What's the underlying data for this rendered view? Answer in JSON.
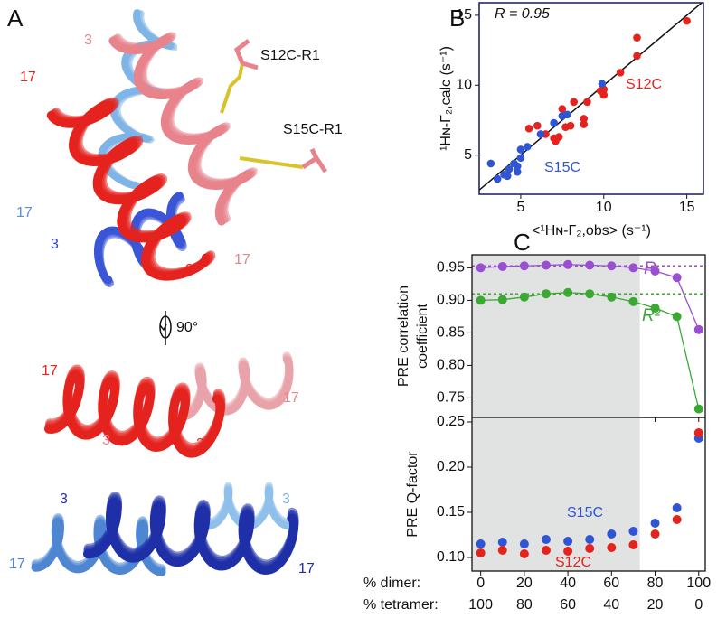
{
  "panel_a": {
    "label": "A",
    "labels": [
      "3",
      "S12C-R1",
      "17",
      "S15C-R1",
      "17",
      "3",
      "3",
      "17",
      "90°",
      "17",
      "17",
      "3",
      "3",
      "3",
      "3",
      "17",
      "17"
    ]
  },
  "chart_data": [
    {
      "type": "scatter",
      "panel": "B",
      "annotation": "R = 0.95",
      "xlabel": "<¹Hɴ-Γ₂,obs> (s⁻¹)",
      "ylabel": "¹Hɴ-Γ₂,calc (s⁻¹)",
      "xlim": [
        2.5,
        16
      ],
      "ylim": [
        2.2,
        15.9
      ],
      "xticks": [
        5,
        10,
        15
      ],
      "yticks": [
        5,
        10,
        15
      ],
      "series": [
        {
          "name": "S12C",
          "color": "#e5231e",
          "x": [
            15,
            12,
            12,
            11,
            10,
            10,
            9,
            8.8,
            8.8,
            8.2,
            8,
            7.5,
            7.3,
            7.1,
            7.7,
            6,
            5.5,
            9.8,
            6.5,
            7
          ],
          "values": [
            14.6,
            13.4,
            12.1,
            10.9,
            9.7,
            9.3,
            8.8,
            7.6,
            7.2,
            8.8,
            7.1,
            8.3,
            6.3,
            6,
            7,
            7.1,
            6.9,
            9.6,
            6.5,
            6.2
          ]
        },
        {
          "name": "S15C",
          "color": "#2f55d4",
          "x": [
            3.2,
            3.6,
            4,
            4.3,
            4.6,
            4.8,
            5,
            5,
            5.4,
            6.2,
            7,
            7.5,
            7.8,
            9.9,
            4.8,
            4.2
          ],
          "values": [
            4.4,
            3.3,
            3.6,
            4,
            4.4,
            4.2,
            4.8,
            5.4,
            5.6,
            6.5,
            7.3,
            7.8,
            7.9,
            10.1,
            3.8,
            3.5
          ]
        }
      ]
    },
    {
      "type": "line",
      "panel": "C",
      "ylabel": [
        "PRE correlation",
        "coefficient"
      ],
      "x": [
        0,
        10,
        20,
        30,
        40,
        50,
        60,
        70,
        80,
        90,
        100
      ],
      "xlim": [
        -4,
        103
      ],
      "shaded_xlim": [
        -4,
        73
      ],
      "ylim": [
        0.72,
        0.97
      ],
      "yticks": [
        0.75,
        {
          "value": 0.8,
          "label": "0.80"
        },
        0.85,
        {
          "value": 0.9,
          "label": "0.90"
        },
        0.95
      ],
      "series": [
        {
          "name": "R",
          "color": "#9a4fd0",
          "reference": 0.953,
          "values": [
            0.95,
            0.952,
            0.953,
            0.954,
            0.955,
            0.954,
            0.953,
            0.95,
            0.945,
            0.935,
            0.855
          ]
        },
        {
          "name": "R²",
          "color": "#3aa832",
          "reference": 0.91,
          "values": [
            0.9,
            0.901,
            0.905,
            0.91,
            0.912,
            0.91,
            0.905,
            0.898,
            0.888,
            0.875,
            0.733
          ]
        }
      ]
    },
    {
      "type": "scatter",
      "panel": "C",
      "ylabel": "PRE Q-factor",
      "x": [
        0,
        10,
        20,
        30,
        40,
        50,
        60,
        70,
        80,
        90,
        100
      ],
      "xlim": [
        -4,
        103
      ],
      "shaded_xlim": [
        -4,
        73
      ],
      "ylim": [
        0.085,
        0.255
      ],
      "yticks": [
        {
          "value": 0.1,
          "label": "0.10"
        },
        0.15,
        {
          "value": 0.2,
          "label": "0.20"
        },
        0.25
      ],
      "xlabel": "% dimer:",
      "xticks": [
        0,
        20,
        40,
        60,
        80,
        100
      ],
      "x2label": "% tetramer:",
      "x2ticks": [
        {
          "value": 0,
          "label": "100"
        },
        {
          "value": 20,
          "label": "80"
        },
        {
          "value": 40,
          "label": "60"
        },
        {
          "value": 60,
          "label": "40"
        },
        {
          "value": 80,
          "label": "20"
        },
        {
          "value": 100,
          "label": "0"
        }
      ],
      "series": [
        {
          "name": "S15C",
          "color": "#2f55d4",
          "values": [
            0.115,
            0.117,
            0.115,
            0.12,
            0.118,
            0.12,
            0.126,
            0.129,
            0.138,
            0.155,
            0.232
          ]
        },
        {
          "name": "S12C",
          "color": "#e5231e",
          "values": [
            0.105,
            0.108,
            0.104,
            0.108,
            0.107,
            0.11,
            0.111,
            0.114,
            0.126,
            0.142,
            0.238
          ]
        }
      ]
    }
  ]
}
